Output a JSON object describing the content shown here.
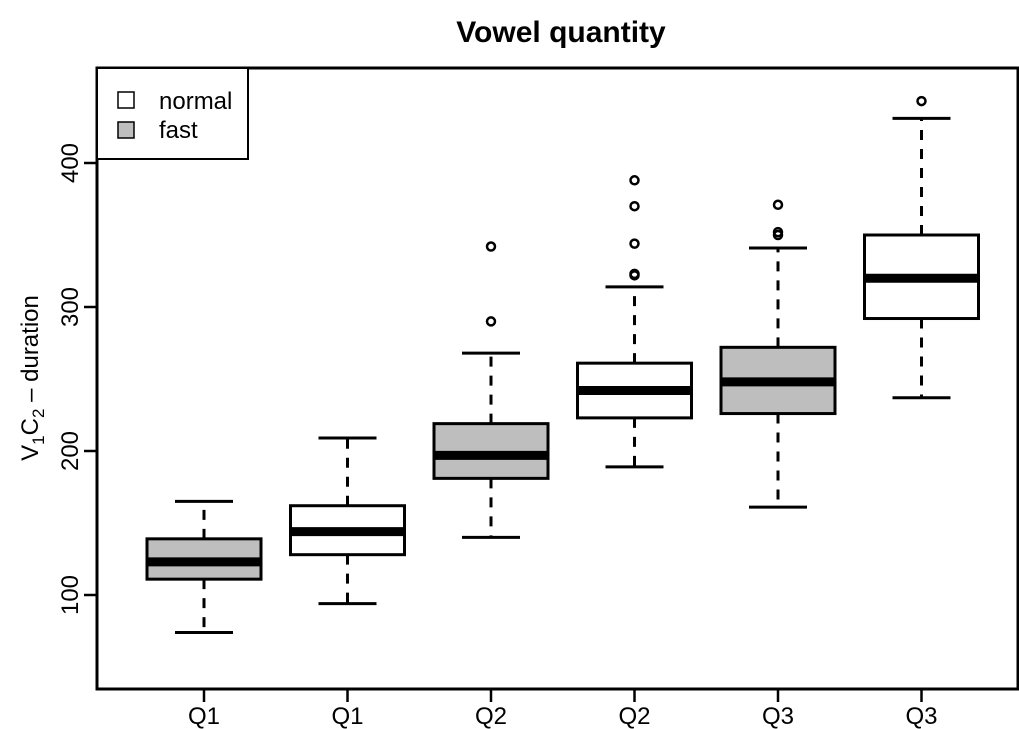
{
  "chart_data": {
    "type": "box",
    "title": "Vowel quantity",
    "ylabel": {
      "main": "V",
      "sub1": "1",
      "mid": "C",
      "sub2": "2",
      "tail": " – duration"
    },
    "xlabel": "",
    "ylim": [
      35,
      465
    ],
    "yticks": [
      100,
      200,
      300,
      400
    ],
    "ytick_labels": [
      "100",
      "200",
      "300",
      "400"
    ],
    "categories": [
      "Q1",
      "Q1",
      "Q2",
      "Q2",
      "Q3",
      "Q3"
    ],
    "legend": {
      "position": "top-left",
      "entries": [
        {
          "label": "normal",
          "color": "#ffffff"
        },
        {
          "label": "fast",
          "color": "#bebebe"
        }
      ]
    },
    "boxes": [
      {
        "category": "Q1",
        "group": "fast",
        "fill": "#bebebe",
        "whisker_low": 74,
        "q1": 111,
        "median": 123,
        "q3": 139,
        "whisker_high": 165,
        "outliers": []
      },
      {
        "category": "Q1",
        "group": "normal",
        "fill": "#ffffff",
        "whisker_low": 94,
        "q1": 128,
        "median": 144,
        "q3": 162,
        "whisker_high": 209,
        "outliers": []
      },
      {
        "category": "Q2",
        "group": "fast",
        "fill": "#bebebe",
        "whisker_low": 140,
        "q1": 181,
        "median": 197,
        "q3": 219,
        "whisker_high": 268,
        "outliers": [
          290,
          342
        ]
      },
      {
        "category": "Q2",
        "group": "normal",
        "fill": "#ffffff",
        "whisker_low": 189,
        "q1": 223,
        "median": 242,
        "q3": 261,
        "whisker_high": 314,
        "outliers": [
          322,
          323,
          344,
          370,
          388
        ]
      },
      {
        "category": "Q3",
        "group": "fast",
        "fill": "#bebebe",
        "whisker_low": 161,
        "q1": 226,
        "median": 248,
        "q3": 272,
        "whisker_high": 341,
        "outliers": [
          350,
          352,
          371
        ]
      },
      {
        "category": "Q3",
        "group": "normal",
        "fill": "#ffffff",
        "whisker_low": 237,
        "q1": 292,
        "median": 320,
        "q3": 350,
        "whisker_high": 431,
        "outliers": [
          443
        ]
      }
    ]
  }
}
